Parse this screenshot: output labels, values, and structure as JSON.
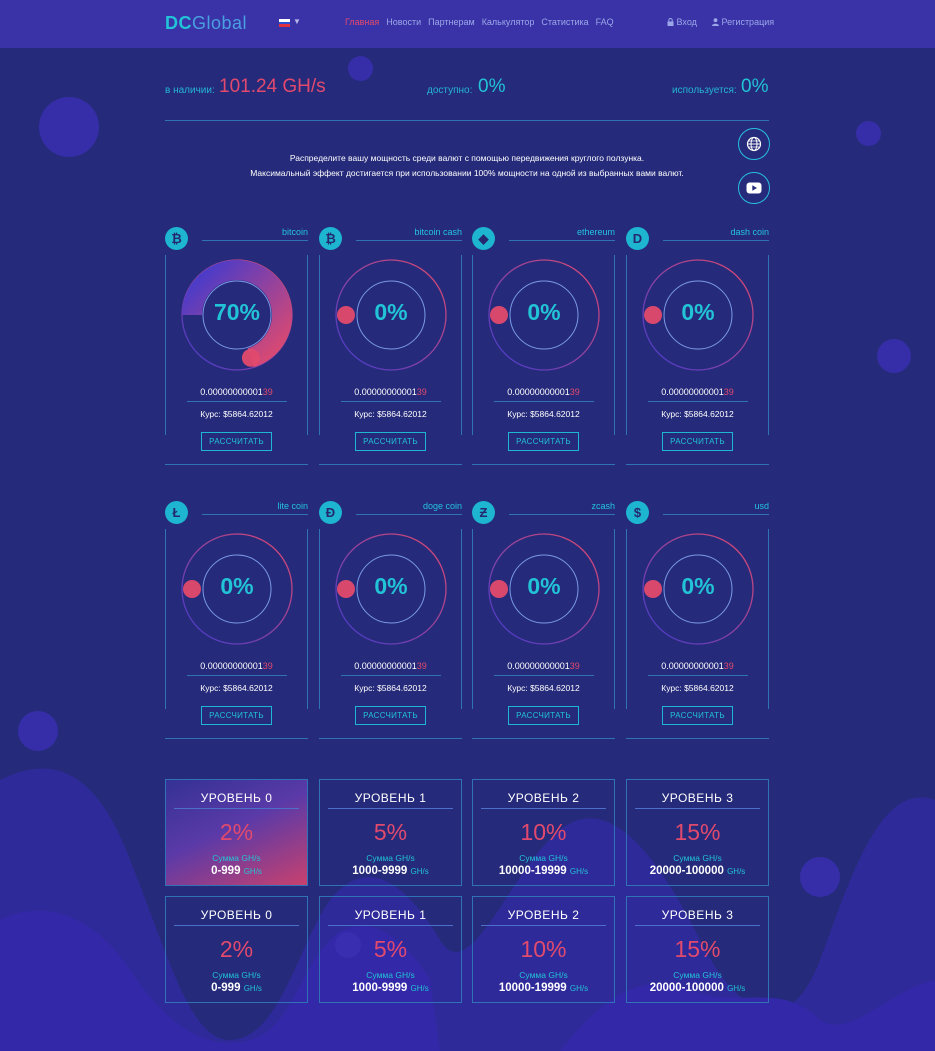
{
  "header": {
    "logo_dc": "DC",
    "logo_global": "Global",
    "nav": [
      "Главная",
      "Новости",
      "Партнерам",
      "Калькулятор",
      "Статистика",
      "FAQ"
    ],
    "login_label": "Вход",
    "register_label": "Регистрация"
  },
  "stats": {
    "available_label": "в наличии:",
    "available_value": "101.24 GH/s",
    "free_label": "доступно:",
    "free_value": "0%",
    "used_label": "используется:",
    "used_value": "0%"
  },
  "intro": {
    "line1": "Распределите вашу мощность среди валют с помощью передвижения круглого ползунка.",
    "line2": "Максимальный эффект достигается при использовании 100% мощности на одной из выбранных вами валют."
  },
  "coins": [
    {
      "name": "bitcoin",
      "symbol": "₿",
      "percent": "70%",
      "value": 0.7,
      "amount_main": "0.00000000001",
      "amount_tail": "39",
      "rate": "Курс: $5864.62012",
      "button": "РАССЧИТАТЬ"
    },
    {
      "name": "bitcoin cash",
      "symbol": "₿",
      "percent": "0%",
      "value": 0,
      "amount_main": "0.00000000001",
      "amount_tail": "39",
      "rate": "Курс: $5864.62012",
      "button": "РАССЧИТАТЬ"
    },
    {
      "name": "ethereum",
      "symbol": "◆",
      "percent": "0%",
      "value": 0,
      "amount_main": "0.00000000001",
      "amount_tail": "39",
      "rate": "Курс: $5864.62012",
      "button": "РАССЧИТАТЬ"
    },
    {
      "name": "dash coin",
      "symbol": "D",
      "percent": "0%",
      "value": 0,
      "amount_main": "0.00000000001",
      "amount_tail": "39",
      "rate": "Курс: $5864.62012",
      "button": "РАССЧИТАТЬ"
    },
    {
      "name": "lite coin",
      "symbol": "Ł",
      "percent": "0%",
      "value": 0,
      "amount_main": "0.00000000001",
      "amount_tail": "39",
      "rate": "Курс: $5864.62012",
      "button": "РАССЧИТАТЬ"
    },
    {
      "name": "doge coin",
      "symbol": "Ð",
      "percent": "0%",
      "value": 0,
      "amount_main": "0.00000000001",
      "amount_tail": "39",
      "rate": "Курс: $5864.62012",
      "button": "РАССЧИТАТЬ"
    },
    {
      "name": "zcash",
      "symbol": "Ƶ",
      "percent": "0%",
      "value": 0,
      "amount_main": "0.00000000001",
      "amount_tail": "39",
      "rate": "Курс: $5864.62012",
      "button": "РАССЧИТАТЬ"
    },
    {
      "name": "usd",
      "symbol": "$",
      "percent": "0%",
      "value": 0,
      "amount_main": "0.00000000001",
      "amount_tail": "39",
      "rate": "Курс: $5864.62012",
      "button": "РАССЧИТАТЬ"
    }
  ],
  "levels": [
    {
      "title": "УРОВЕНЬ 0",
      "percent": "2%",
      "sum_label": "Сумма GH/s",
      "range": "0-999",
      "unit": "GH/s"
    },
    {
      "title": "УРОВЕНЬ 1",
      "percent": "5%",
      "sum_label": "Сумма GH/s",
      "range": "1000-9999",
      "unit": "GH/s"
    },
    {
      "title": "УРОВЕНЬ 2",
      "percent": "10%",
      "sum_label": "Сумма GH/s",
      "range": "10000-19999",
      "unit": "GH/s"
    },
    {
      "title": "УРОВЕНЬ 3",
      "percent": "15%",
      "sum_label": "Сумма GH/s",
      "range": "20000-100000",
      "unit": "GH/s"
    },
    {
      "title": "УРОВЕНЬ 0",
      "percent": "2%",
      "sum_label": "Сумма GH/s",
      "range": "0-999",
      "unit": "GH/s"
    },
    {
      "title": "УРОВЕНЬ 1",
      "percent": "5%",
      "sum_label": "Сумма GH/s",
      "range": "1000-9999",
      "unit": "GH/s"
    },
    {
      "title": "УРОВЕНЬ 2",
      "percent": "10%",
      "sum_label": "Сумма GH/s",
      "range": "10000-19999",
      "unit": "GH/s"
    },
    {
      "title": "УРОВЕНЬ 3",
      "percent": "15%",
      "sum_label": "Сумма GH/s",
      "range": "20000-100000",
      "unit": "GH/s"
    }
  ],
  "colors": {
    "background": "#252a7a",
    "header": "#3a33a8",
    "accent_cyan": "#22c3d6",
    "accent_pink": "#e24a6d"
  }
}
